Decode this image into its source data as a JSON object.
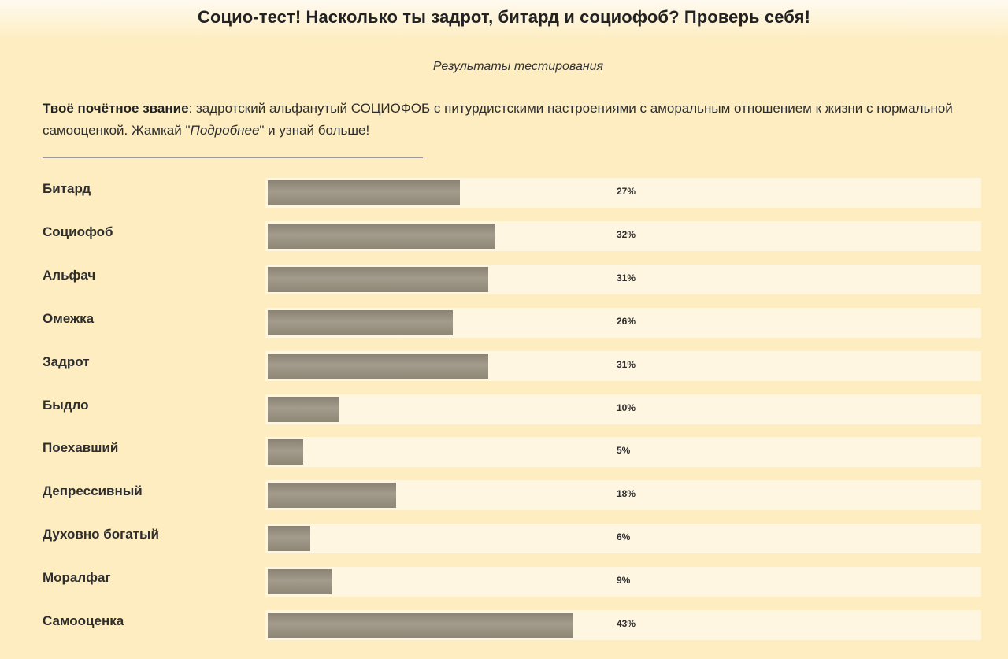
{
  "header": {
    "title": "Социо-тест! Насколько ты задрот, битард и социофоб? Проверь себя!"
  },
  "results": {
    "subtitle": "Результаты тестирования",
    "rank_label": "Твоё почётное звание",
    "rank_text_1": ": задротский альфанутый СОЦИОФОБ с питурдистскими настроениями с аморальным отношением к жизни с нормальной самооценкой. Жамкай \"",
    "more_word": "Подробнее",
    "rank_text_2": "\" и узнай больше!"
  },
  "chart_data": {
    "type": "bar",
    "orientation": "horizontal",
    "categories": [
      "Битард",
      "Социофоб",
      "Альфач",
      "Омежка",
      "Задрот",
      "Быдло",
      "Поехавший",
      "Депрессивный",
      "Духовно богатый",
      "Моралфаг",
      "Самооценка"
    ],
    "values": [
      27,
      32,
      31,
      26,
      31,
      10,
      5,
      18,
      6,
      9,
      43
    ],
    "value_labels": [
      "27%",
      "32%",
      "31%",
      "26%",
      "31%",
      "10%",
      "5%",
      "18%",
      "6%",
      "9%",
      "43%"
    ],
    "xlim": [
      0,
      100
    ],
    "unit": "%",
    "colors": {
      "bar": "#958d7d",
      "track": "#fff6e2",
      "background": "#fdedc0"
    }
  }
}
